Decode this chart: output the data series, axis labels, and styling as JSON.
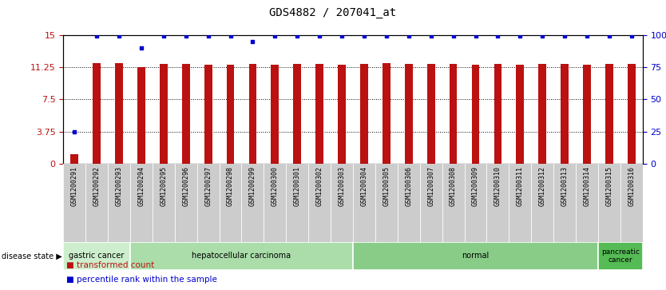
{
  "title": "GDS4882 / 207041_at",
  "samples": [
    "GSM1200291",
    "GSM1200292",
    "GSM1200293",
    "GSM1200294",
    "GSM1200295",
    "GSM1200296",
    "GSM1200297",
    "GSM1200298",
    "GSM1200299",
    "GSM1200300",
    "GSM1200301",
    "GSM1200302",
    "GSM1200303",
    "GSM1200304",
    "GSM1200305",
    "GSM1200306",
    "GSM1200307",
    "GSM1200308",
    "GSM1200309",
    "GSM1200310",
    "GSM1200311",
    "GSM1200312",
    "GSM1200313",
    "GSM1200314",
    "GSM1200315",
    "GSM1200316"
  ],
  "red_values": [
    1.1,
    11.7,
    11.75,
    11.2,
    11.6,
    11.6,
    11.5,
    11.55,
    11.6,
    11.55,
    11.6,
    11.6,
    11.55,
    11.65,
    11.75,
    11.65,
    11.6,
    11.6,
    11.55,
    11.6,
    11.55,
    11.6,
    11.6,
    11.55,
    11.6,
    11.65
  ],
  "blue_values": [
    25,
    99,
    99,
    90,
    99,
    99,
    99,
    99,
    95,
    99,
    99,
    99,
    99,
    99,
    99,
    99,
    99,
    99,
    99,
    99,
    99,
    99,
    99,
    99,
    99,
    99
  ],
  "ylim_left": [
    0,
    15
  ],
  "ylim_right": [
    0,
    100
  ],
  "yticks_left": [
    0,
    3.75,
    7.5,
    11.25,
    15
  ],
  "ytick_labels_left": [
    "0",
    "3.75",
    "7.5",
    "11.25",
    "15"
  ],
  "yticks_right": [
    0,
    25,
    50,
    75,
    100
  ],
  "ytick_labels_right": [
    "0",
    "25",
    "50",
    "75",
    "100%"
  ],
  "bar_color": "#BB1111",
  "dot_color": "#0000CC",
  "groups": [
    {
      "label": "gastric cancer",
      "start": 0,
      "end": 2,
      "color": "#cceecc"
    },
    {
      "label": "hepatocellular carcinoma",
      "start": 3,
      "end": 12,
      "color": "#aaddaa"
    },
    {
      "label": "normal",
      "start": 13,
      "end": 23,
      "color": "#88cc88"
    },
    {
      "label": "pancreatic\ncancer",
      "start": 24,
      "end": 25,
      "color": "#55bb55"
    }
  ],
  "disease_state_label": "disease state",
  "legend_red": "transformed count",
  "legend_blue": "percentile rank within the sample",
  "bg_color": "#ffffff",
  "xtick_bg": "#cccccc",
  "bar_width": 0.35
}
